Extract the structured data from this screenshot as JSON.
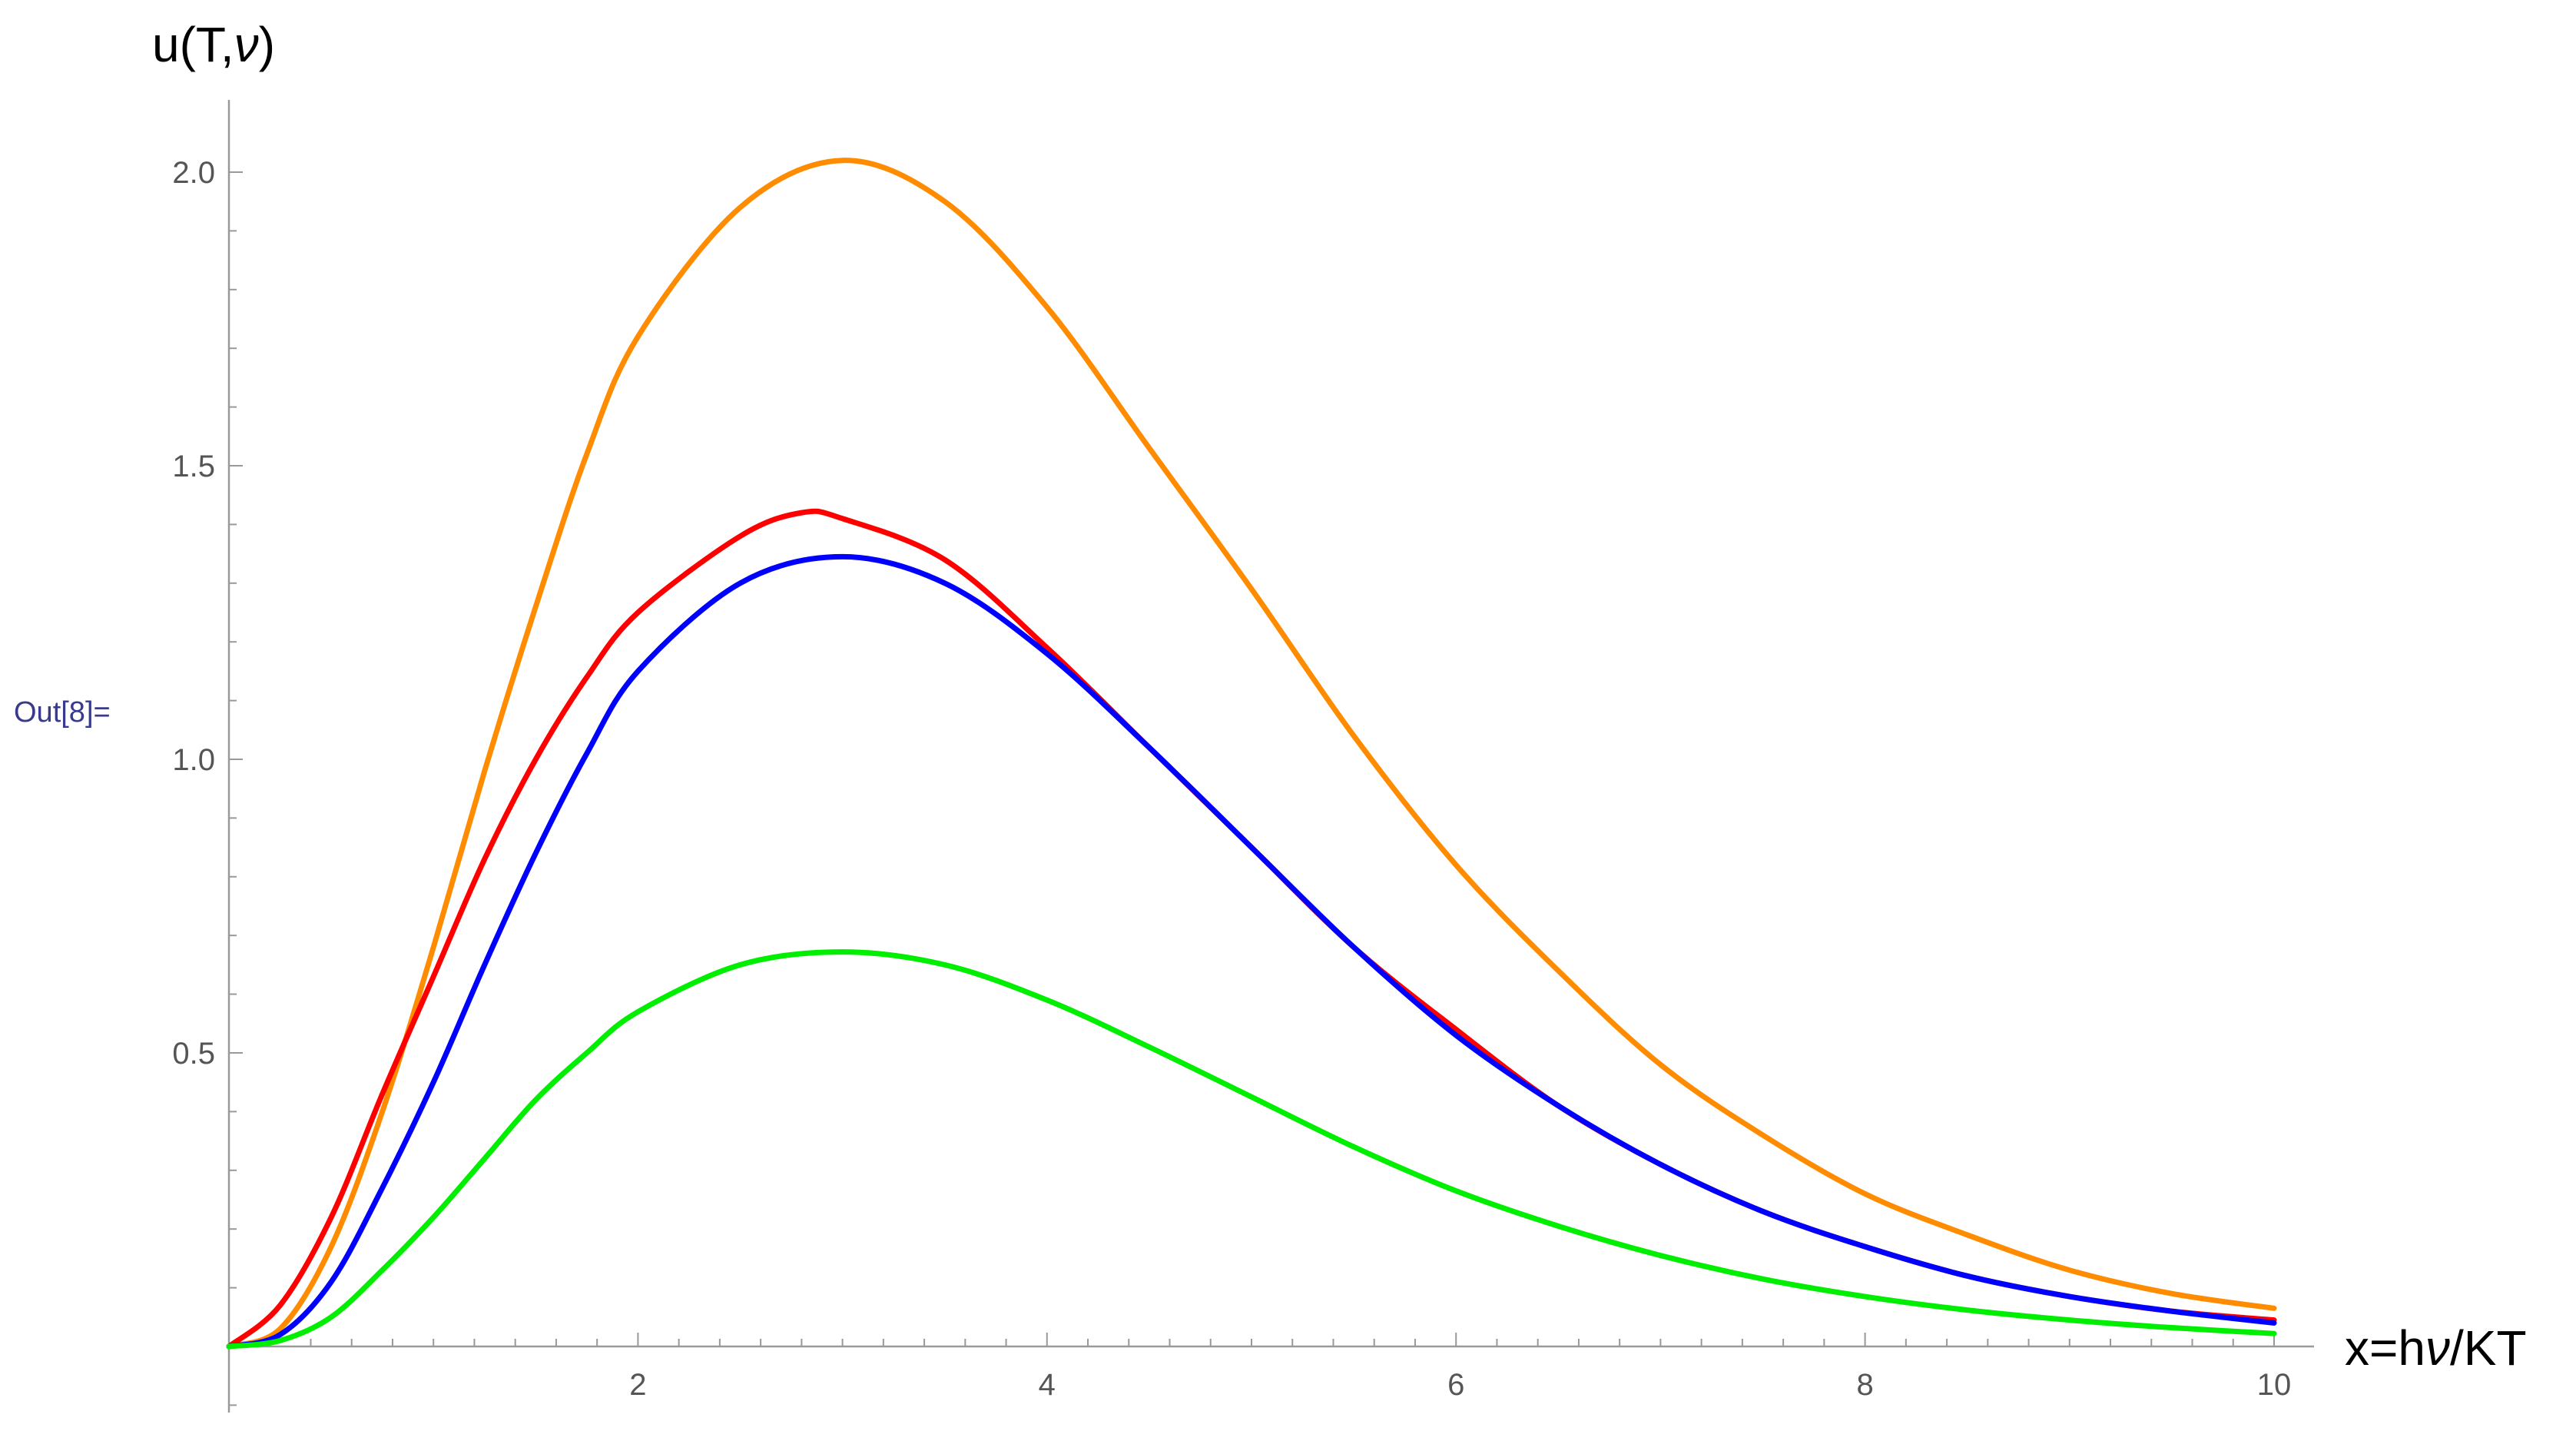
{
  "cell_label": "Out[8]=",
  "chart_data": {
    "type": "line",
    "xlabel": "x=hν/KT",
    "ylabel": "u(T,ν)",
    "xlim": [
      0,
      10
    ],
    "ylim": [
      0,
      2.1
    ],
    "x_ticks": [
      2,
      4,
      6,
      8,
      10
    ],
    "x_tick_labels": [
      "2",
      "4",
      "6",
      "8",
      "10"
    ],
    "y_ticks": [
      0.5,
      1.0,
      1.5,
      2.0
    ],
    "y_tick_labels": [
      "0.5",
      "1.0",
      "1.5",
      "2.0"
    ],
    "grid": false,
    "legend": "none",
    "series": [
      {
        "color": "#ff8c00",
        "x": [
          0,
          0.25,
          0.5,
          0.75,
          1,
          1.25,
          1.5,
          1.75,
          2,
          2.5,
          3,
          3.5,
          4,
          4.5,
          5,
          5.5,
          6,
          6.5,
          7,
          7.5,
          8,
          8.5,
          9,
          9.5,
          10
        ],
        "y": [
          0,
          0.03,
          0.17,
          0.4,
          0.68,
          0.98,
          1.26,
          1.52,
          1.72,
          1.94,
          2.02,
          1.95,
          1.77,
          1.53,
          1.29,
          1.04,
          0.82,
          0.64,
          0.48,
          0.36,
          0.26,
          0.19,
          0.13,
          0.09,
          0.065
        ]
      },
      {
        "color": "#ff0000",
        "x": [
          0,
          0.25,
          0.5,
          0.75,
          1,
          1.25,
          1.5,
          1.75,
          2,
          2.5,
          2.8,
          3,
          3.5,
          4,
          4.5,
          5,
          5.5,
          6,
          6.5,
          7,
          7.5,
          8,
          8.5,
          9,
          9.5,
          10
        ],
        "y": [
          0,
          0.07,
          0.22,
          0.43,
          0.63,
          0.83,
          1.0,
          1.14,
          1.25,
          1.38,
          1.42,
          1.41,
          1.34,
          1.19,
          1.02,
          0.85,
          0.68,
          0.54,
          0.41,
          0.31,
          0.23,
          0.17,
          0.12,
          0.085,
          0.06,
          0.045
        ]
      },
      {
        "color": "#0000ff",
        "x": [
          0,
          0.25,
          0.5,
          0.75,
          1,
          1.25,
          1.5,
          1.75,
          2,
          2.5,
          3,
          3.5,
          4,
          4.5,
          5,
          5.5,
          6,
          6.5,
          7,
          7.5,
          8,
          8.5,
          9,
          9.5,
          10
        ],
        "y": [
          0,
          0.02,
          0.11,
          0.27,
          0.45,
          0.65,
          0.84,
          1.01,
          1.15,
          1.3,
          1.345,
          1.3,
          1.18,
          1.02,
          0.85,
          0.68,
          0.53,
          0.41,
          0.31,
          0.23,
          0.17,
          0.12,
          0.085,
          0.06,
          0.04
        ]
      },
      {
        "color": "#00ee00",
        "x": [
          0,
          0.25,
          0.5,
          0.75,
          1,
          1.25,
          1.5,
          1.75,
          2,
          2.5,
          3,
          3.5,
          4,
          4.5,
          5,
          5.5,
          6,
          6.5,
          7,
          7.5,
          8,
          8.5,
          9,
          9.5,
          10
        ],
        "y": [
          0,
          0.01,
          0.05,
          0.13,
          0.22,
          0.32,
          0.42,
          0.5,
          0.57,
          0.65,
          0.672,
          0.65,
          0.59,
          0.51,
          0.425,
          0.34,
          0.265,
          0.205,
          0.155,
          0.115,
          0.085,
          0.062,
          0.045,
          0.032,
          0.022
        ]
      }
    ]
  }
}
